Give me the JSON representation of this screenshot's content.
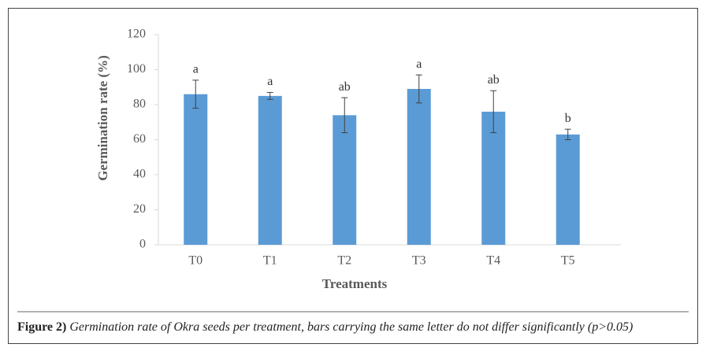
{
  "chart_data": {
    "type": "bar",
    "y_label": "Germination rate (%)",
    "x_label": "Treatments",
    "categories": [
      "T0",
      "T1",
      "T2",
      "T3",
      "T4",
      "T5"
    ],
    "values": [
      86,
      85,
      74,
      89,
      76,
      63
    ],
    "errors": [
      8,
      2,
      10,
      8,
      12,
      3
    ],
    "letters": [
      "a",
      "a",
      "ab",
      "a",
      "ab",
      "b"
    ],
    "color": "#5b9bd5",
    "ylim": [
      0,
      120
    ],
    "yticks": [
      0,
      20,
      40,
      60,
      80,
      100,
      120
    ],
    "grid": false
  },
  "caption": {
    "label": "Figure 2)",
    "text": "Germination rate of Okra seeds per treatment, bars carrying the same letter do not differ significantly (p>0.05)"
  }
}
